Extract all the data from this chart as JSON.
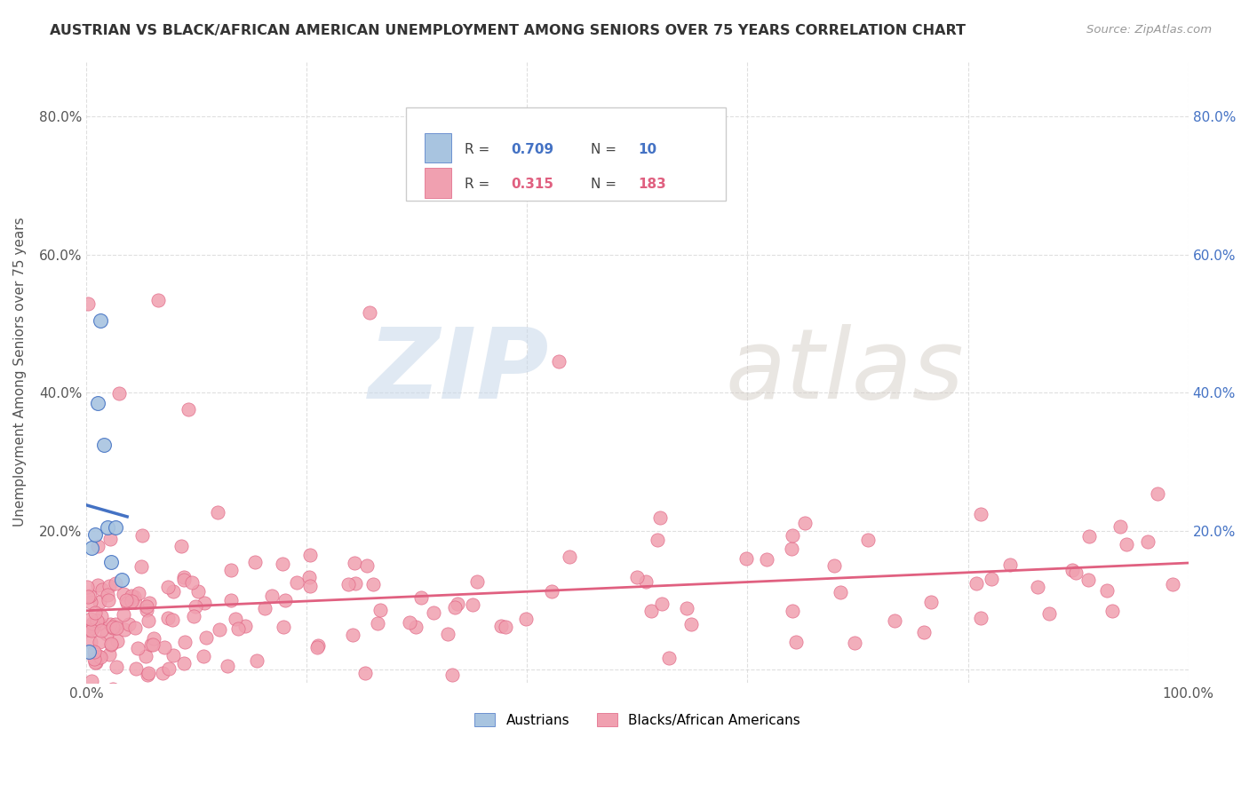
{
  "title": "AUSTRIAN VS BLACK/AFRICAN AMERICAN UNEMPLOYMENT AMONG SENIORS OVER 75 YEARS CORRELATION CHART",
  "source": "Source: ZipAtlas.com",
  "ylabel": "Unemployment Among Seniors over 75 years",
  "xlim": [
    0.0,
    1.0
  ],
  "ylim": [
    -0.02,
    0.88
  ],
  "blue_color": "#a8c4e0",
  "pink_color": "#f0a0b0",
  "blue_line_color": "#4472c4",
  "pink_line_color": "#e06080",
  "watermark_zip": "ZIP",
  "watermark_atlas": "atlas",
  "legend_r1": "0.709",
  "legend_n1": "10",
  "legend_r2": "0.315",
  "legend_n2": "183"
}
